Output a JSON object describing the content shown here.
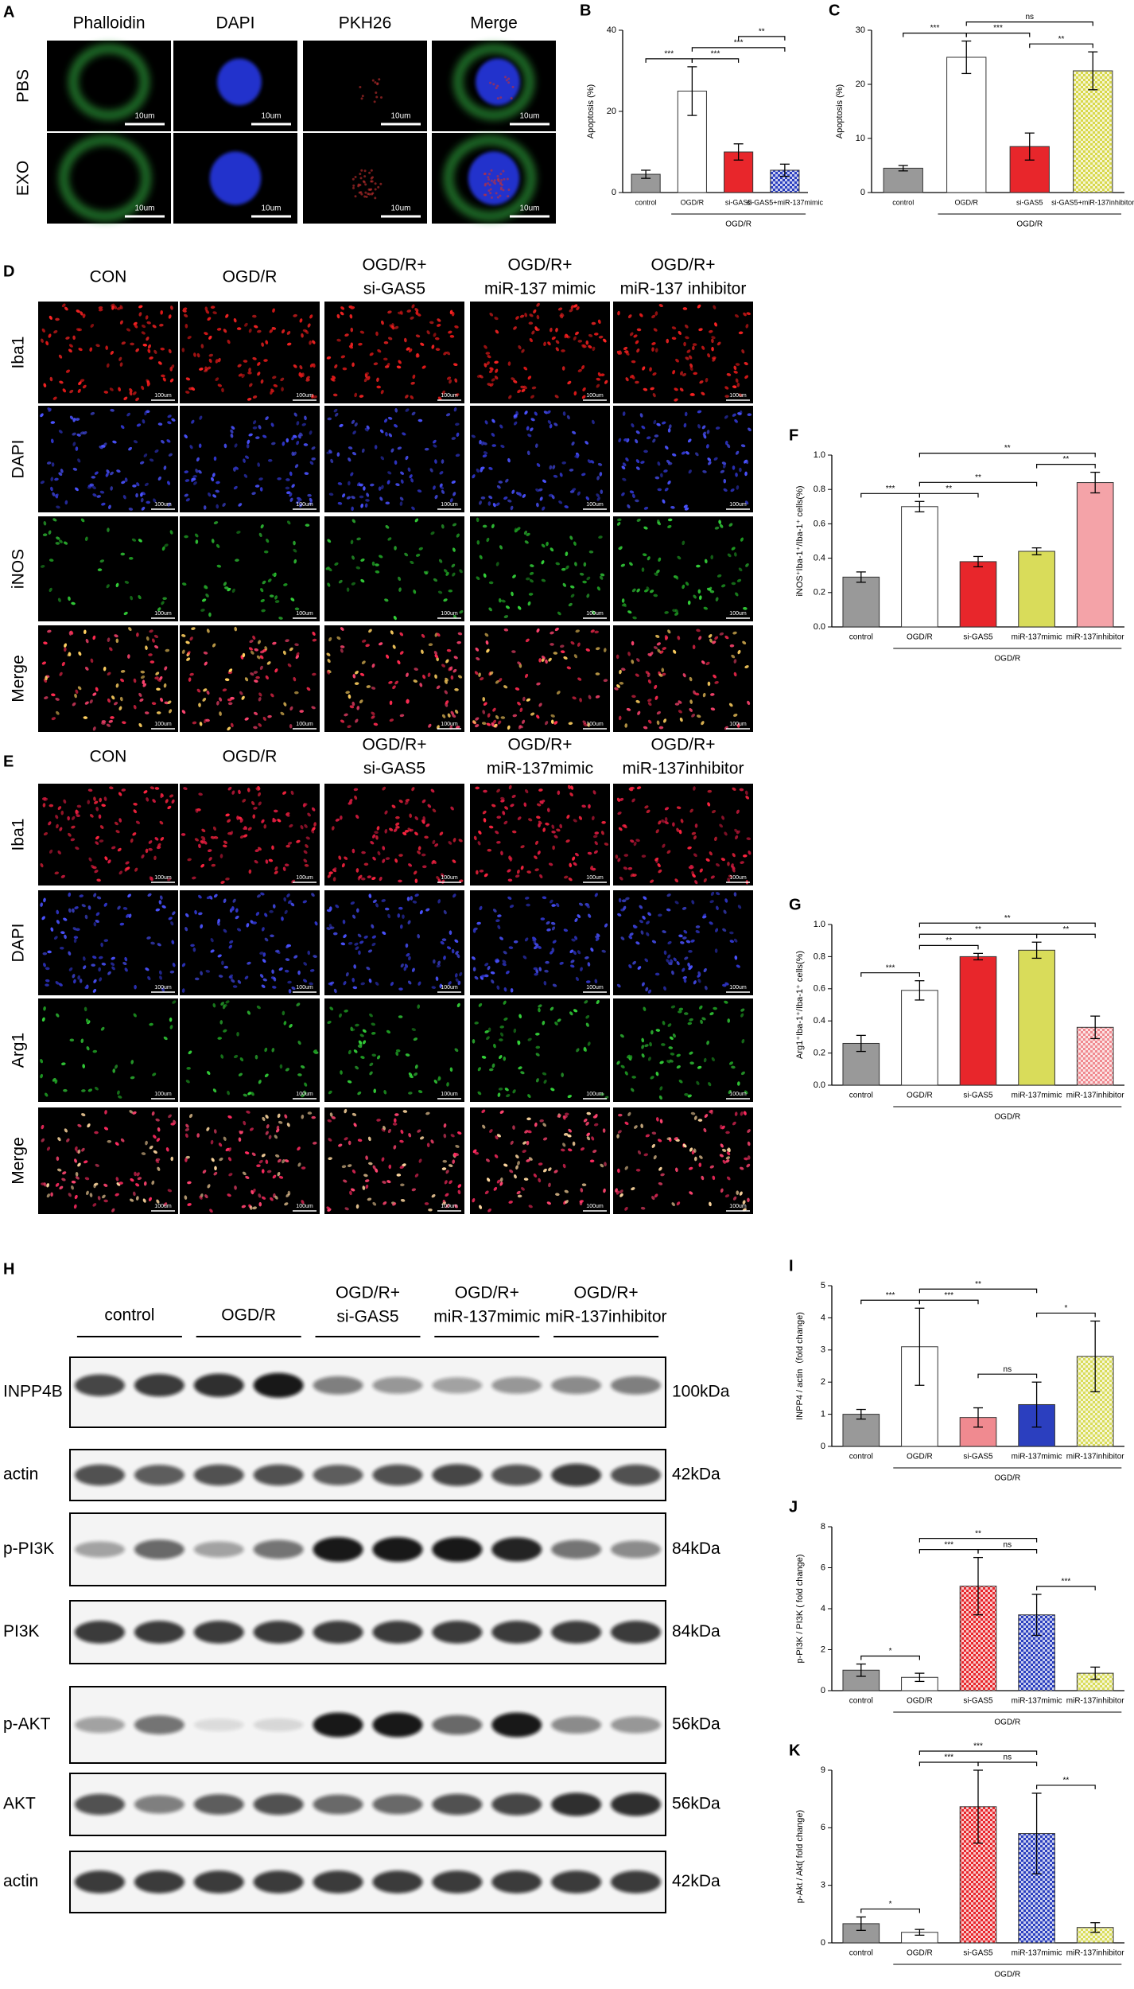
{
  "panel_a": {
    "letter": "A",
    "columns": [
      "Phalloidin",
      "DAPI",
      "PKH26",
      "Merge"
    ],
    "rows": [
      "PBS",
      "EXO"
    ],
    "scale_bar": "10um"
  },
  "panel_d": {
    "letter": "D",
    "columns": [
      [
        "CON"
      ],
      [
        "OGD/R"
      ],
      [
        "OGD/R+",
        "si-GAS5"
      ],
      [
        "OGD/R+",
        "miR-137 mimic"
      ],
      [
        "OGD/R+",
        "miR-137 inhibitor"
      ]
    ],
    "rows": [
      "Iba1",
      "DAPI",
      "iNOS",
      "Merge"
    ],
    "scale_bar": "100um"
  },
  "panel_e": {
    "letter": "E",
    "columns": [
      [
        "CON"
      ],
      [
        "OGD/R"
      ],
      [
        "OGD/R+",
        "si-GAS5"
      ],
      [
        "OGD/R+",
        "miR-137mimic"
      ],
      [
        "OGD/R+",
        "miR-137inhibitor"
      ]
    ],
    "rows": [
      "Iba1",
      "DAPI",
      "Arg1",
      "Merge"
    ],
    "scale_bar": "100um"
  },
  "panel_h": {
    "letter": "H",
    "groups": [
      [
        "control"
      ],
      [
        "OGD/R"
      ],
      [
        "OGD/R+",
        "si-GAS5"
      ],
      [
        "OGD/R+",
        "miR-137mimic"
      ],
      [
        "OGD/R+",
        "miR-137inhibitor"
      ]
    ],
    "blots": [
      {
        "name": "INPP4B",
        "size": "100kDa"
      },
      {
        "name": "actin",
        "size": "42kDa"
      },
      {
        "name": "p-PI3K",
        "size": "84kDa"
      },
      {
        "name": "PI3K",
        "size": "84kDa"
      },
      {
        "name": "p-AKT",
        "size": "56kDa"
      },
      {
        "name": "AKT",
        "size": "56kDa"
      },
      {
        "name": "actin",
        "size": "42kDa"
      }
    ]
  },
  "chart_data": [
    {
      "letter": "B",
      "type": "bar",
      "ylabel": "Apoptosis (%)",
      "categories": [
        "control",
        "OGD/R",
        "si-GAS5",
        "si-GAS5+miR-137mimic"
      ],
      "values": [
        4.5,
        25,
        10,
        5.5
      ],
      "errors": [
        1,
        6,
        2,
        1.5
      ],
      "colors": [
        "#999999",
        "#ffffff",
        "#e8262b",
        "#2b3fbf"
      ],
      "patterns": [
        "solid",
        "solid",
        "solid",
        "checker"
      ],
      "ylim": [
        0,
        40
      ],
      "yticks": [
        0,
        20,
        40
      ],
      "group_label": "OGD/R",
      "significance": [
        {
          "pair": [
            "control",
            "OGD/R"
          ],
          "label": "***"
        },
        {
          "pair": [
            "OGD/R",
            "si-GAS5"
          ],
          "label": "***"
        },
        {
          "pair": [
            "OGD/R",
            "si-GAS5+miR-137mimic"
          ],
          "label": "***"
        },
        {
          "pair": [
            "si-GAS5",
            "si-GAS5+miR-137mimic"
          ],
          "label": "**"
        }
      ]
    },
    {
      "letter": "C",
      "type": "bar",
      "ylabel": "Apoptosis (%)",
      "categories": [
        "control",
        "OGD/R",
        "si-GAS5",
        "si-GAS5+miR-137inhibitor"
      ],
      "values": [
        4.5,
        25,
        8.5,
        22.5
      ],
      "errors": [
        0.5,
        3,
        2.5,
        3.5
      ],
      "colors": [
        "#999999",
        "#ffffff",
        "#e8262b",
        "#d8d84a"
      ],
      "patterns": [
        "solid",
        "solid",
        "solid",
        "checker"
      ],
      "ylim": [
        0,
        30
      ],
      "yticks": [
        0,
        10,
        20,
        30
      ],
      "group_label": "OGD/R",
      "significance": [
        {
          "pair": [
            "control",
            "OGD/R"
          ],
          "label": "***"
        },
        {
          "pair": [
            "OGD/R",
            "si-GAS5"
          ],
          "label": "***"
        },
        {
          "pair": [
            "si-GAS5",
            "si-GAS5+miR-137inhibitor"
          ],
          "label": "**"
        },
        {
          "pair": [
            "OGD/R",
            "si-GAS5+miR-137inhibitor"
          ],
          "label": "ns"
        }
      ]
    },
    {
      "letter": "F",
      "type": "bar",
      "ylabel": "iNOS⁺Iba-1⁺/Iba-1⁺ cells(%)",
      "categories": [
        "control",
        "OGD/R",
        "si-GAS5",
        "miR-137mimic",
        "miR-137inhibitor"
      ],
      "values": [
        0.29,
        0.7,
        0.38,
        0.44,
        0.84
      ],
      "errors": [
        0.03,
        0.03,
        0.03,
        0.02,
        0.06
      ],
      "colors": [
        "#999999",
        "#ffffff",
        "#e8262b",
        "#d9dc5a",
        "#f4a3a8"
      ],
      "patterns": [
        "solid",
        "solid",
        "solid",
        "solid",
        "solid"
      ],
      "ylim": [
        0,
        1
      ],
      "yticks": [
        {
          "value": 0,
          "label": "0.0"
        },
        0.2,
        0.4,
        0.6,
        0.8,
        {
          "value": 1,
          "label": "1.0"
        }
      ],
      "group_label": "OGD/R",
      "significance": [
        {
          "pair": [
            "control",
            "OGD/R"
          ],
          "label": "***"
        },
        {
          "pair": [
            "OGD/R",
            "si-GAS5"
          ],
          "label": "**"
        },
        {
          "pair": [
            "OGD/R",
            "miR-137mimic"
          ],
          "label": "**"
        },
        {
          "pair": [
            "miR-137mimic",
            "miR-137inhibitor"
          ],
          "label": "**"
        },
        {
          "pair": [
            "OGD/R",
            "miR-137inhibitor"
          ],
          "label": "**"
        }
      ]
    },
    {
      "letter": "G",
      "type": "bar",
      "ylabel": "Arg1⁺Iba-1⁺/Iba-1⁺ cells(%)",
      "categories": [
        "control",
        "OGD/R",
        "si-GAS5",
        "miR-137mimic",
        "miR-137inhibitor"
      ],
      "values": [
        0.26,
        0.59,
        0.8,
        0.84,
        0.36
      ],
      "errors": [
        0.05,
        0.06,
        0.02,
        0.05,
        0.07
      ],
      "colors": [
        "#999999",
        "#ffffff",
        "#e8262b",
        "#d9dc5a",
        "#f08a90"
      ],
      "patterns": [
        "solid",
        "solid",
        "solid",
        "solid",
        "checker"
      ],
      "ylim": [
        0,
        1
      ],
      "yticks": [
        {
          "value": 0,
          "label": "0.0"
        },
        0.2,
        0.4,
        0.6,
        0.8,
        {
          "value": 1,
          "label": "1.0"
        }
      ],
      "group_label": "OGD/R",
      "significance": [
        {
          "pair": [
            "control",
            "OGD/R"
          ],
          "label": "***"
        },
        {
          "pair": [
            "OGD/R",
            "si-GAS5"
          ],
          "label": "**"
        },
        {
          "pair": [
            "OGD/R",
            "miR-137mimic"
          ],
          "label": "**"
        },
        {
          "pair": [
            "miR-137mimic",
            "miR-137inhibitor"
          ],
          "label": "**"
        },
        {
          "pair": [
            "OGD/R",
            "miR-137inhibitor"
          ],
          "label": "**"
        }
      ]
    },
    {
      "letter": "I",
      "type": "bar",
      "ylabel": "INPP4 / actin（fold change)",
      "categories": [
        "control",
        "OGD/R",
        "si-GAS5",
        "miR-137mimic",
        "miR-137inhibitor"
      ],
      "values": [
        1.0,
        3.1,
        0.9,
        1.3,
        2.8
      ],
      "errors": [
        0.15,
        1.2,
        0.3,
        0.7,
        1.1
      ],
      "colors": [
        "#999999",
        "#ffffff",
        "#f08a90",
        "#2b3fbf",
        "#d9dc5a"
      ],
      "patterns": [
        "solid",
        "solid",
        "solid",
        "solid",
        "checker"
      ],
      "ylim": [
        0,
        5
      ],
      "yticks": [
        0,
        1,
        2,
        3,
        4,
        5
      ],
      "group_label": "OGD/R",
      "significance": [
        {
          "pair": [
            "control",
            "OGD/R"
          ],
          "label": "***"
        },
        {
          "pair": [
            "OGD/R",
            "si-GAS5"
          ],
          "label": "***"
        },
        {
          "pair": [
            "si-GAS5",
            "miR-137mimic"
          ],
          "label": "ns"
        },
        {
          "pair": [
            "miR-137mimic",
            "miR-137inhibitor"
          ],
          "label": "*"
        },
        {
          "pair": [
            "OGD/R",
            "miR-137mimic"
          ],
          "label": "**"
        }
      ]
    },
    {
      "letter": "J",
      "type": "bar",
      "ylabel": "p-PI3K / PI3K ( fold change)",
      "categories": [
        "control",
        "OGD/R",
        "si-GAS5",
        "miR-137mimic",
        "miR-137inhibitor"
      ],
      "values": [
        1.0,
        0.65,
        5.1,
        3.7,
        0.85
      ],
      "errors": [
        0.3,
        0.2,
        1.4,
        1.0,
        0.3
      ],
      "colors": [
        "#999999",
        "#ffffff",
        "#e8262b",
        "#2b3fbf",
        "#d9dc5a"
      ],
      "patterns": [
        "solid",
        "solid",
        "checker",
        "checker",
        "checker"
      ],
      "ylim": [
        0,
        8
      ],
      "yticks": [
        0,
        2,
        4,
        6,
        8
      ],
      "group_label": "OGD/R",
      "significance": [
        {
          "pair": [
            "control",
            "OGD/R"
          ],
          "label": "*"
        },
        {
          "pair": [
            "OGD/R",
            "si-GAS5"
          ],
          "label": "***"
        },
        {
          "pair": [
            "si-GAS5",
            "miR-137mimic"
          ],
          "label": "ns"
        },
        {
          "pair": [
            "miR-137mimic",
            "miR-137inhibitor"
          ],
          "label": "***"
        },
        {
          "pair": [
            "OGD/R",
            "miR-137mimic"
          ],
          "label": "**"
        }
      ]
    },
    {
      "letter": "K",
      "type": "bar",
      "ylabel": "p-Akt / Akt( fold change)",
      "categories": [
        "control",
        "OGD/R",
        "si-GAS5",
        "miR-137mimic",
        "miR-137inhibitor"
      ],
      "values": [
        1.0,
        0.55,
        7.1,
        5.7,
        0.8
      ],
      "errors": [
        0.35,
        0.15,
        1.9,
        2.1,
        0.25
      ],
      "colors": [
        "#999999",
        "#ffffff",
        "#e8262b",
        "#2b3fbf",
        "#d9dc5a"
      ],
      "patterns": [
        "solid",
        "solid",
        "checker",
        "checker",
        "checker"
      ],
      "ylim": [
        0,
        9
      ],
      "yticks": [
        0,
        3,
        6,
        9
      ],
      "group_label": "OGD/R",
      "significance": [
        {
          "pair": [
            "control",
            "OGD/R"
          ],
          "label": "*"
        },
        {
          "pair": [
            "OGD/R",
            "si-GAS5"
          ],
          "label": "***"
        },
        {
          "pair": [
            "si-GAS5",
            "miR-137mimic"
          ],
          "label": "ns"
        },
        {
          "pair": [
            "miR-137mimic",
            "miR-137inhibitor"
          ],
          "label": "**"
        },
        {
          "pair": [
            "OGD/R",
            "miR-137mimic"
          ],
          "label": "***"
        }
      ]
    }
  ]
}
